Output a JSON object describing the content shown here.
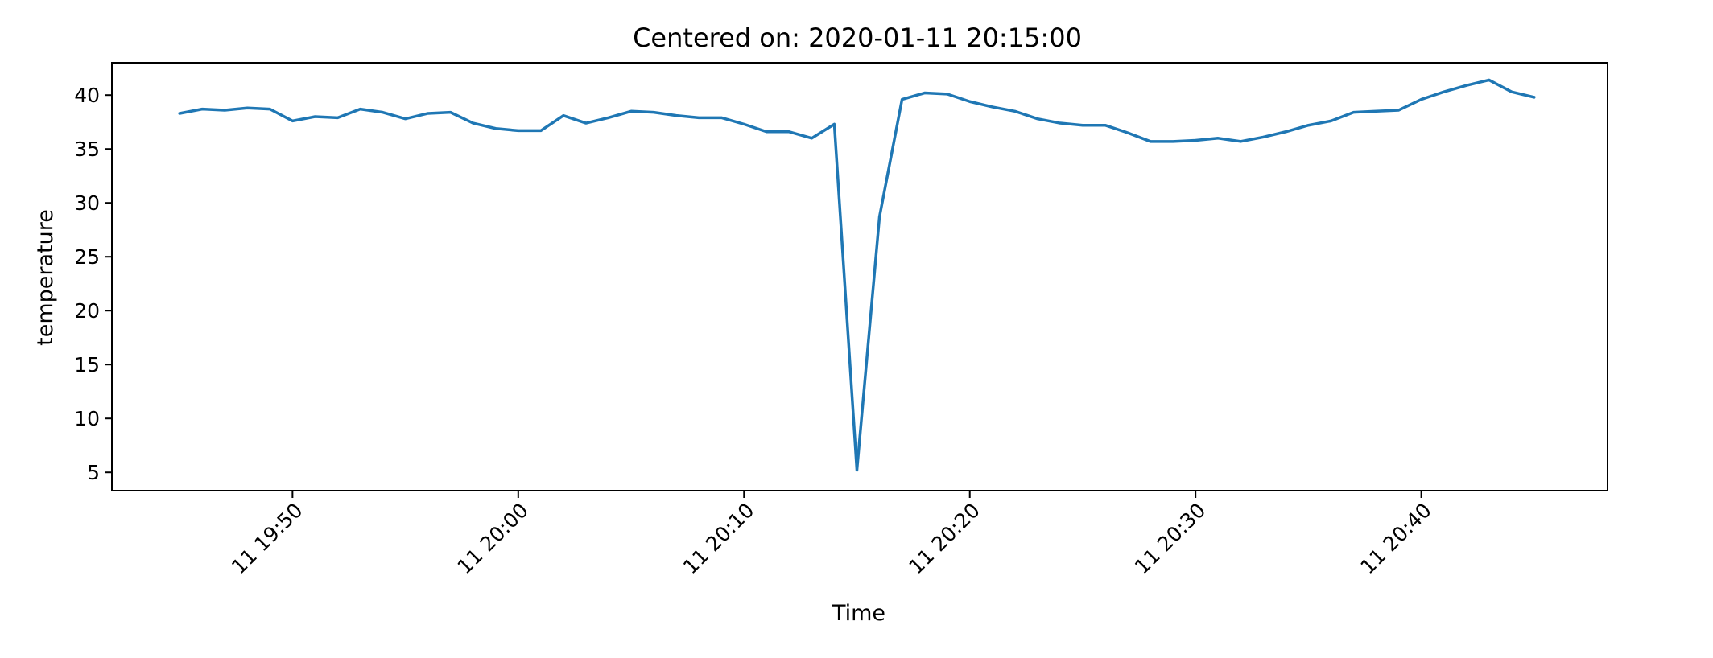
{
  "chart_data": {
    "type": "line",
    "title": "Centered on: 2020-01-11 20:15:00",
    "xlabel": "Time",
    "ylabel": "temperature",
    "x_ticks": [
      "2020-01-11 19:50",
      "2020-01-11 20:00",
      "2020-01-11 20:10",
      "2020-01-11 20:20",
      "2020-01-11 20:30",
      "2020-01-11 20:40"
    ],
    "x_tick_labels": [
      "11 19:50",
      "11 20:00",
      "11 20:10",
      "11 20:20",
      "11 20:30",
      "11 20:40"
    ],
    "y_ticks": [
      5,
      10,
      15,
      20,
      25,
      30,
      35,
      40
    ],
    "y_tick_labels": [
      "5",
      "10",
      "15",
      "20",
      "25",
      "30",
      "35",
      "40"
    ],
    "xlim": [
      "2020-01-11 19:42:00",
      "2020-01-11 20:48:15"
    ],
    "ylim": [
      3.3,
      43.0
    ],
    "grid": false,
    "legend": "none",
    "colors": {
      "series": "#1f77b4"
    },
    "series": [
      {
        "x": [
          "2020-01-11 19:45",
          "2020-01-11 19:46",
          "2020-01-11 19:47",
          "2020-01-11 19:48",
          "2020-01-11 19:49",
          "2020-01-11 19:50",
          "2020-01-11 19:51",
          "2020-01-11 19:52",
          "2020-01-11 19:53",
          "2020-01-11 19:54",
          "2020-01-11 19:55",
          "2020-01-11 19:56",
          "2020-01-11 19:57",
          "2020-01-11 19:58",
          "2020-01-11 19:59",
          "2020-01-11 20:00",
          "2020-01-11 20:01",
          "2020-01-11 20:02",
          "2020-01-11 20:03",
          "2020-01-11 20:04",
          "2020-01-11 20:05",
          "2020-01-11 20:06",
          "2020-01-11 20:07",
          "2020-01-11 20:08",
          "2020-01-11 20:09",
          "2020-01-11 20:10",
          "2020-01-11 20:11",
          "2020-01-11 20:12",
          "2020-01-11 20:13",
          "2020-01-11 20:14",
          "2020-01-11 20:15",
          "2020-01-11 20:16",
          "2020-01-11 20:17",
          "2020-01-11 20:18",
          "2020-01-11 20:19",
          "2020-01-11 20:20",
          "2020-01-11 20:21",
          "2020-01-11 20:22",
          "2020-01-11 20:23",
          "2020-01-11 20:24",
          "2020-01-11 20:25",
          "2020-01-11 20:26",
          "2020-01-11 20:27",
          "2020-01-11 20:28",
          "2020-01-11 20:29",
          "2020-01-11 20:30",
          "2020-01-11 20:31",
          "2020-01-11 20:32",
          "2020-01-11 20:33",
          "2020-01-11 20:34",
          "2020-01-11 20:35",
          "2020-01-11 20:36",
          "2020-01-11 20:37",
          "2020-01-11 20:38",
          "2020-01-11 20:39",
          "2020-01-11 20:40",
          "2020-01-11 20:41",
          "2020-01-11 20:42",
          "2020-01-11 20:43",
          "2020-01-11 20:44",
          "2020-01-11 20:45"
        ],
        "y": [
          38.3,
          38.7,
          38.6,
          38.8,
          38.7,
          37.6,
          38.0,
          37.9,
          38.7,
          38.4,
          37.8,
          38.3,
          38.4,
          37.4,
          36.9,
          36.7,
          36.7,
          38.1,
          37.4,
          37.9,
          38.5,
          38.4,
          38.1,
          37.9,
          37.9,
          37.3,
          36.6,
          36.6,
          36.0,
          37.3,
          5.2,
          28.7,
          39.6,
          40.2,
          40.1,
          39.4,
          38.9,
          38.5,
          37.8,
          37.4,
          37.2,
          37.2,
          36.5,
          35.7,
          35.7,
          35.8,
          36.0,
          35.7,
          36.1,
          36.6,
          37.2,
          37.6,
          38.4,
          38.5,
          38.6,
          39.6,
          40.3,
          40.9,
          41.4,
          40.3,
          39.8
        ]
      }
    ]
  }
}
